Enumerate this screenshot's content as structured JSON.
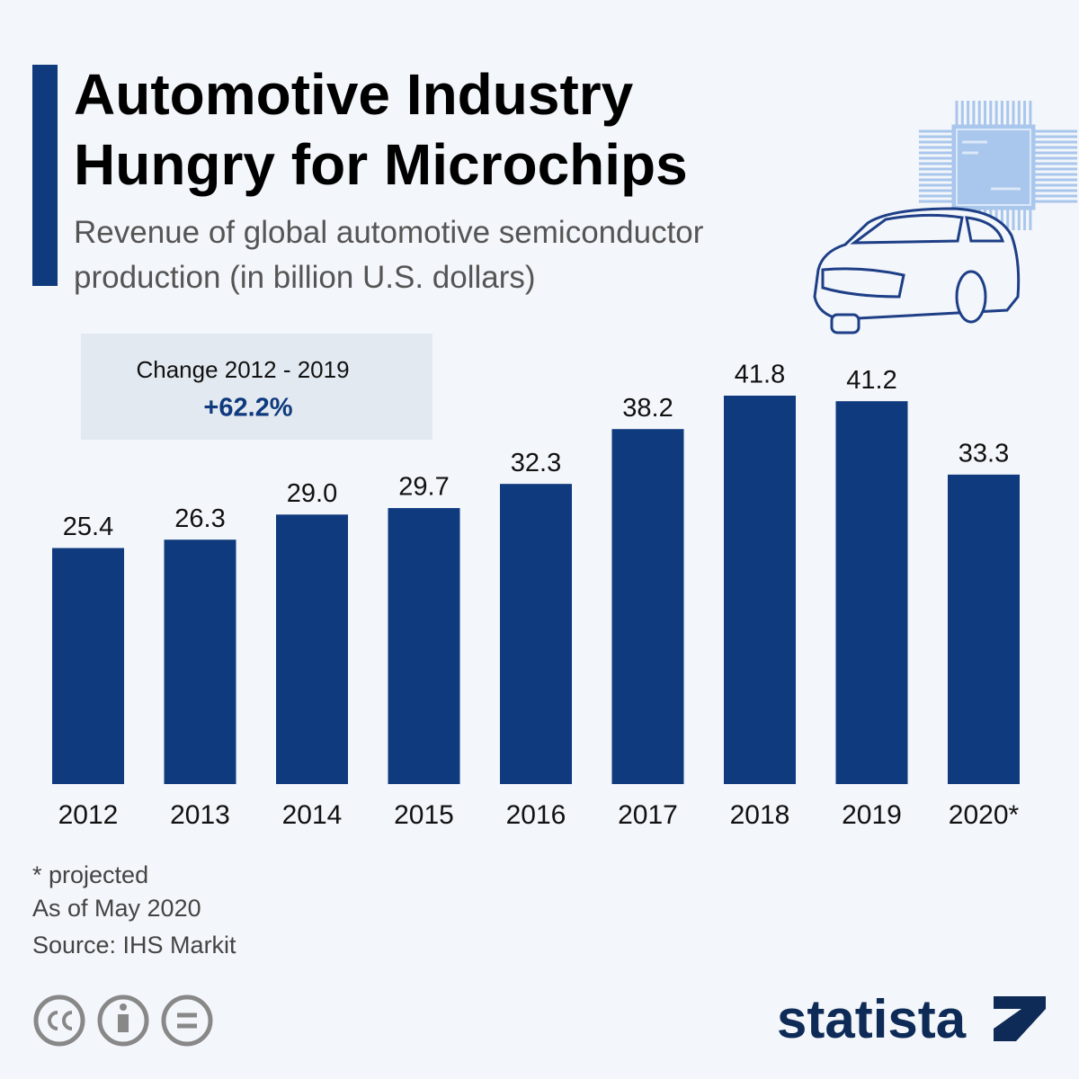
{
  "chart_data": {
    "type": "bar",
    "title": "Automotive Industry Hungry for Microchips",
    "subtitle": "Revenue of global automotive semiconductor production (in billion U.S. dollars)",
    "categories": [
      "2012",
      "2013",
      "2014",
      "2015",
      "2016",
      "2017",
      "2018",
      "2019",
      "2020*"
    ],
    "values": [
      25.4,
      26.3,
      29.0,
      29.7,
      32.3,
      38.2,
      41.8,
      41.2,
      33.3
    ],
    "value_labels": [
      "25.4",
      "26.3",
      "29.0",
      "29.7",
      "32.3",
      "38.2",
      "41.8",
      "41.2",
      "33.3"
    ],
    "color": "#0f3a7d",
    "annotation": {
      "label": "Change 2012 - 2019",
      "value": "+62.2%"
    },
    "footnotes": [
      "* projected",
      "As of May 2020",
      "Source: IHS Markit"
    ],
    "logo": "statista"
  }
}
